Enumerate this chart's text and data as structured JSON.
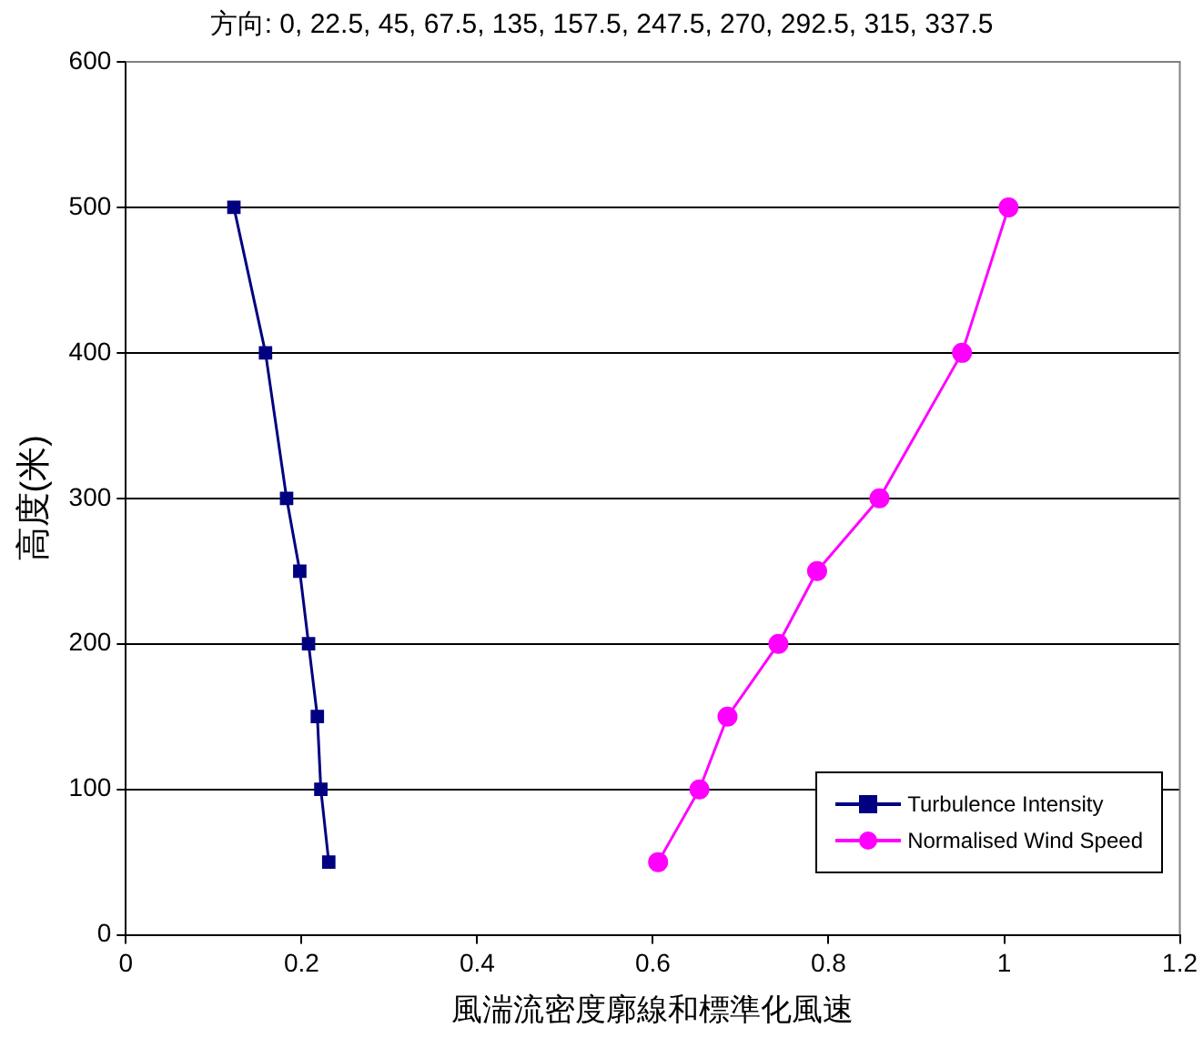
{
  "chart_data": {
    "type": "line",
    "title": "方向: 0, 22.5, 45, 67.5, 135, 157.5, 247.5, 270, 292.5, 315, 337.5",
    "xlabel": "風湍流密度廓線和標準化風速",
    "ylabel": "高度(米)",
    "xlim": [
      0,
      1.2
    ],
    "xticks": [
      0,
      0.2,
      0.4,
      0.6,
      0.8,
      1,
      1.2
    ],
    "ylim": [
      0,
      600
    ],
    "yticks": [
      0,
      100,
      200,
      300,
      400,
      500,
      600
    ],
    "grid": "y",
    "legend": "bottom right",
    "series": [
      {
        "name": "Turbulence Intensity",
        "color": "#000080",
        "marker": "square",
        "x": [
          0.231,
          0.222,
          0.218,
          0.208,
          0.198,
          0.183,
          0.159,
          0.123
        ],
        "values": [
          50,
          100,
          150,
          200,
          250,
          300,
          400,
          500
        ]
      },
      {
        "name": "Normalised Wind Speed",
        "color": "#ff00ff",
        "marker": "circle",
        "x": [
          0.606,
          0.653,
          0.685,
          0.743,
          0.787,
          0.858,
          0.952,
          1.005
        ],
        "values": [
          50,
          100,
          150,
          200,
          250,
          300,
          400,
          500
        ]
      }
    ]
  }
}
